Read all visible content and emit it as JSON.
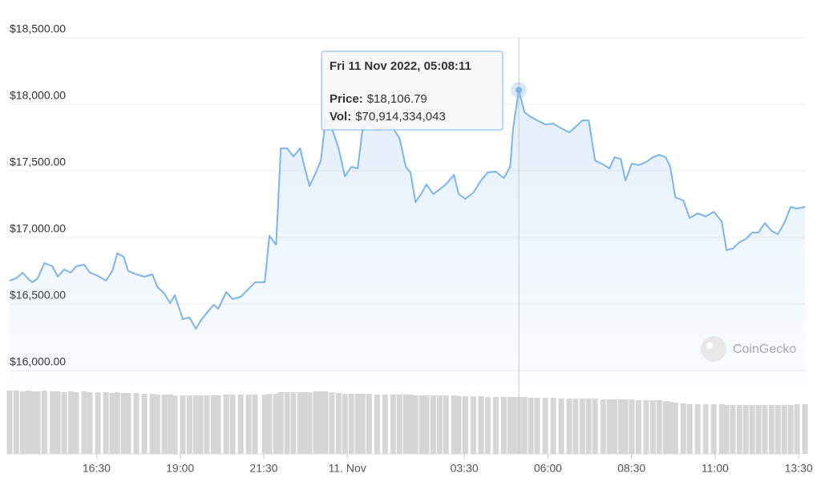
{
  "chart_data": {
    "type": "line",
    "xlim": [
      13.9,
      37.7
    ],
    "xticks": [
      {
        "value": 16.5,
        "label": "16:30"
      },
      {
        "value": 19,
        "label": "19:00"
      },
      {
        "value": 21.5,
        "label": "21:30"
      },
      {
        "value": 24,
        "label": "11. Nov"
      },
      {
        "value": 27.5,
        "label": "03:30"
      },
      {
        "value": 30,
        "label": "06:00"
      },
      {
        "value": 32.5,
        "label": "08:30"
      },
      {
        "value": 35,
        "label": "11:00"
      },
      {
        "value": 37.5,
        "label": "13:30"
      }
    ],
    "ylim": [
      16000,
      18500
    ],
    "yticks": [
      {
        "value": 16000,
        "label": "$16,000.00"
      },
      {
        "value": 16500,
        "label": "$16,500.00"
      },
      {
        "value": 17000,
        "label": "$17,000.00"
      },
      {
        "value": 17500,
        "label": "$17,500.00"
      },
      {
        "value": 18000,
        "label": "$18,000.00"
      },
      {
        "value": 18500,
        "label": "$18,500.00"
      }
    ],
    "y2lim": [
      0,
      97000000000
    ],
    "grid": true,
    "tooltip": {
      "title": "Fri 11 Nov 2022, 05:08:11"
    },
    "watermark": "CoinGecko",
    "x": [
      13.9,
      14.1,
      14.29,
      14.46,
      14.58,
      14.74,
      14.94,
      15.18,
      15.34,
      15.53,
      15.73,
      15.89,
      16.13,
      16.3,
      16.54,
      16.78,
      16.97,
      17.12,
      17.31,
      17.45,
      17.69,
      17.93,
      18.17,
      18.32,
      18.53,
      18.7,
      18.84,
      19.08,
      19.28,
      19.47,
      19.61,
      19.8,
      20.0,
      20.14,
      20.38,
      20.57,
      20.81,
      21.05,
      21.24,
      21.53,
      21.67,
      21.87,
      22.01,
      22.2,
      22.39,
      22.59,
      22.73,
      22.87,
      23.06,
      23.21,
      23.35,
      23.54,
      23.74,
      23.93,
      24.12,
      24.31,
      24.46,
      24.65,
      24.89,
      25.13,
      25.37,
      25.56,
      25.75,
      25.89,
      26.04,
      26.23,
      26.37,
      26.57,
      26.76,
      26.95,
      27.19,
      27.33,
      27.53,
      27.77,
      28.0,
      28.2,
      28.44,
      28.68,
      28.87,
      28.96,
      29.13,
      29.3,
      29.49,
      29.68,
      29.92,
      30.16,
      30.4,
      30.64,
      30.83,
      31.03,
      31.22,
      31.41,
      31.65,
      31.84,
      31.99,
      32.18,
      32.32,
      32.51,
      32.71,
      32.94,
      33.14,
      33.33,
      33.52,
      33.66,
      33.81,
      34.05,
      34.24,
      34.48,
      34.72,
      34.96,
      35.2,
      35.34,
      35.53,
      35.73,
      35.92,
      36.11,
      36.3,
      36.49,
      36.69,
      36.88,
      37.07,
      37.26,
      37.45,
      37.69
    ],
    "series": [
      {
        "name": "Price:",
        "color": "#7cb5ec",
        "values": [
          16675,
          16693,
          16735,
          16687,
          16663,
          16693,
          16807,
          16783,
          16705,
          16759,
          16735,
          16783,
          16795,
          16735,
          16711,
          16675,
          16747,
          16880,
          16855,
          16747,
          16723,
          16705,
          16723,
          16627,
          16578,
          16506,
          16566,
          16386,
          16398,
          16313,
          16373,
          16434,
          16494,
          16464,
          16590,
          16536,
          16554,
          16614,
          16663,
          16663,
          17012,
          16946,
          17669,
          17669,
          17608,
          17669,
          17518,
          17386,
          17488,
          17578,
          17892,
          17819,
          17669,
          17458,
          17530,
          17518,
          17819,
          17879,
          17807,
          17831,
          17819,
          17747,
          17530,
          17488,
          17265,
          17337,
          17398,
          17325,
          17361,
          17398,
          17470,
          17325,
          17289,
          17337,
          17428,
          17488,
          17494,
          17446,
          17530,
          17819,
          18106.79,
          17940,
          17904,
          17879,
          17849,
          17855,
          17819,
          17789,
          17831,
          17879,
          17879,
          17578,
          17548,
          17518,
          17602,
          17590,
          17428,
          17554,
          17542,
          17566,
          17602,
          17620,
          17602,
          17530,
          17301,
          17277,
          17145,
          17181,
          17157,
          17193,
          17120,
          16904,
          16916,
          16964,
          16988,
          17036,
          17036,
          17108,
          17048,
          17024,
          17108,
          17229,
          17217,
          17229
        ],
        "value_labels": [
          null,
          null,
          null,
          null,
          null,
          null,
          null,
          null,
          null,
          null,
          null,
          null,
          null,
          null,
          null,
          null,
          null,
          null,
          null,
          null,
          null,
          null,
          null,
          null,
          null,
          null,
          null,
          null,
          null,
          null,
          null,
          null,
          null,
          null,
          null,
          null,
          null,
          null,
          null,
          null,
          null,
          null,
          null,
          null,
          null,
          null,
          null,
          null,
          null,
          null,
          null,
          null,
          null,
          null,
          null,
          null,
          null,
          null,
          null,
          null,
          null,
          null,
          null,
          null,
          null,
          null,
          null,
          null,
          null,
          null,
          null,
          null,
          null,
          null,
          null,
          null,
          null,
          null,
          null,
          null,
          "$18,106.79",
          null,
          null,
          null,
          null,
          null,
          null,
          null,
          null,
          null,
          null,
          null,
          null,
          null,
          null,
          null,
          null,
          null,
          null,
          null,
          null,
          null,
          null,
          null,
          null,
          null,
          null,
          null,
          null,
          null,
          null,
          null,
          null,
          null,
          null,
          null,
          null,
          null,
          null,
          null,
          null,
          null,
          null,
          null
        ]
      },
      {
        "name": "Vol:",
        "type": "bar",
        "axis": "y2",
        "color": "#d6d6d6",
        "values": [
          79000000000.0,
          79000000000.0,
          78000000000.0,
          79000000000.0,
          78000000000.0,
          78000000000.0,
          79000000000.0,
          78000000000.0,
          78000000000.0,
          77000000000.0,
          78000000000.0,
          77000000000.0,
          78000000000.0,
          77000000000.0,
          77000000000.0,
          77000000000.0,
          76000000000.0,
          77000000000.0,
          76000000000.0,
          76000000000.0,
          76000000000.0,
          75000000000.0,
          75000000000.0,
          74000000000.0,
          74000000000.0,
          74000000000.0,
          73000000000.0,
          73000000000.0,
          73000000000.0,
          73000000000.0,
          73000000000.0,
          73000000000.0,
          73000000000.0,
          73000000000.0,
          74000000000.0,
          74000000000.0,
          74000000000.0,
          74000000000.0,
          74000000000.0,
          74000000000.0,
          75000000000.0,
          75000000000.0,
          77000000000.0,
          77000000000.0,
          77000000000.0,
          77000000000.0,
          77000000000.0,
          77000000000.0,
          78000000000.0,
          78000000000.0,
          78000000000.0,
          77000000000.0,
          76000000000.0,
          75000000000.0,
          75000000000.0,
          75000000000.0,
          75000000000.0,
          75000000000.0,
          74000000000.0,
          74000000000.0,
          74000000000.0,
          74000000000.0,
          74000000000.0,
          74000000000.0,
          73000000000.0,
          73000000000.0,
          73000000000.0,
          73000000000.0,
          73000000000.0,
          73000000000.0,
          73000000000.0,
          72000000000.0,
          72000000000.0,
          72000000000.0,
          72000000000.0,
          71000000000.0,
          71000000000.0,
          71000000000.0,
          71000000000.0,
          71000000000.0,
          70914334043,
          71000000000.0,
          70000000000.0,
          70000000000.0,
          70000000000.0,
          70000000000.0,
          69000000000.0,
          69000000000.0,
          69000000000.0,
          69000000000.0,
          69000000000.0,
          69000000000.0,
          68000000000.0,
          68000000000.0,
          68000000000.0,
          68000000000.0,
          68000000000.0,
          68000000000.0,
          67000000000.0,
          67000000000.0,
          67000000000.0,
          67000000000.0,
          66000000000.0,
          65000000000.0,
          64000000000.0,
          63000000000.0,
          62000000000.0,
          62000000000.0,
          62000000000.0,
          62000000000.0,
          62000000000.0,
          61000000000.0,
          61000000000.0,
          61000000000.0,
          61000000000.0,
          61000000000.0,
          61000000000.0,
          61000000000.0,
          61000000000.0,
          61000000000.0,
          61000000000.0,
          61000000000.0,
          62000000000.0,
          62000000000.0
        ],
        "value_labels": [
          null,
          null,
          null,
          null,
          null,
          null,
          null,
          null,
          null,
          null,
          null,
          null,
          null,
          null,
          null,
          null,
          null,
          null,
          null,
          null,
          null,
          null,
          null,
          null,
          null,
          null,
          null,
          null,
          null,
          null,
          null,
          null,
          null,
          null,
          null,
          null,
          null,
          null,
          null,
          null,
          null,
          null,
          null,
          null,
          null,
          null,
          null,
          null,
          null,
          null,
          null,
          null,
          null,
          null,
          null,
          null,
          null,
          null,
          null,
          null,
          null,
          null,
          null,
          null,
          null,
          null,
          null,
          null,
          null,
          null,
          null,
          null,
          null,
          null,
          null,
          null,
          null,
          null,
          null,
          null,
          "$70,914,334,043",
          null,
          null,
          null,
          null,
          null,
          null,
          null,
          null,
          null,
          null,
          null,
          null,
          null,
          null,
          null,
          null,
          null,
          null,
          null,
          null,
          null,
          null,
          null,
          null,
          null,
          null,
          null,
          null,
          null,
          null,
          null,
          null,
          null,
          null,
          null,
          null,
          null,
          null,
          null,
          null,
          null,
          null,
          null
        ]
      }
    ]
  }
}
